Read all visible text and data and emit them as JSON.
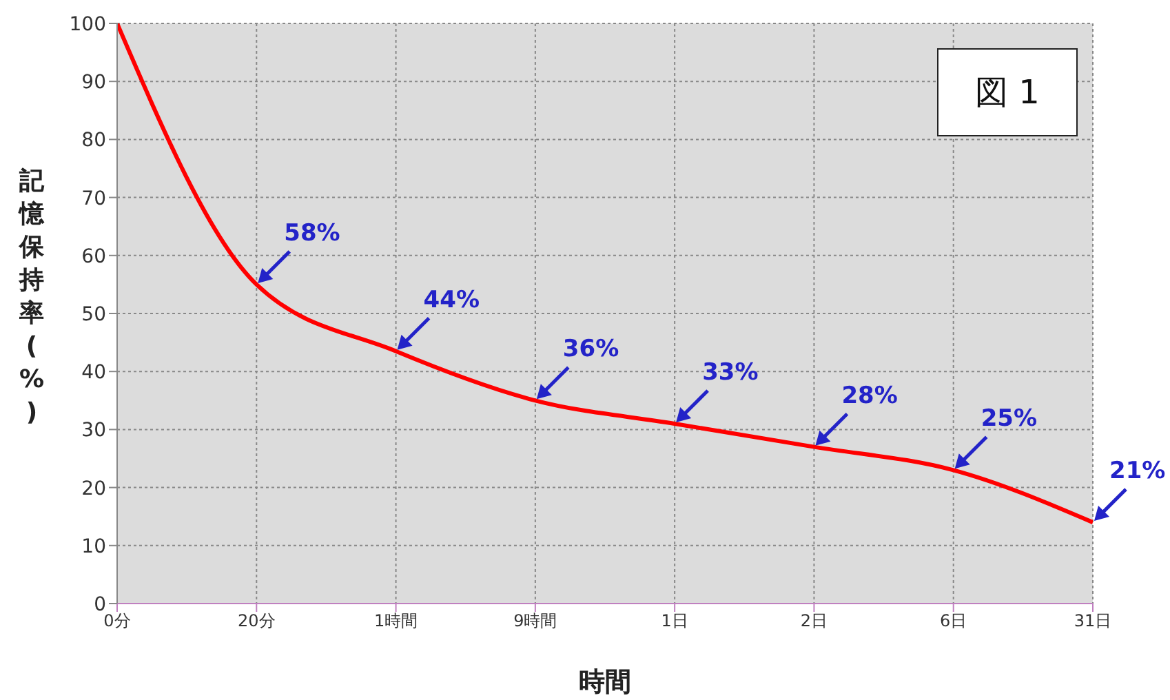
{
  "chart_data": {
    "type": "line",
    "xlabel": "時間",
    "ylabel": "記憶保持率(%)",
    "categories": [
      "0分",
      "20分",
      "1時間",
      "9時間",
      "1日",
      "2日",
      "6日",
      "31日"
    ],
    "series": [
      {
        "color": "#ff0000",
        "values": [
          100,
          55,
          43.5,
          35,
          31,
          27,
          23,
          14
        ]
      }
    ],
    "ylim": [
      0,
      100
    ],
    "yticks": [
      0,
      10,
      20,
      30,
      40,
      50,
      60,
      70,
      80,
      90,
      100
    ],
    "grid": true,
    "marker": "none",
    "line_style": "solid",
    "annotations": [
      "図 1",
      {
        "text": "58%",
        "x": "20分",
        "y": 55
      },
      {
        "text": "44%",
        "x": "1時間",
        "y": 43.5
      },
      {
        "text": "36%",
        "x": "9時間",
        "y": 35
      },
      {
        "text": "33%",
        "x": "1日",
        "y": 31
      },
      {
        "text": "28%",
        "x": "2日",
        "y": 27
      },
      {
        "text": "25%",
        "x": "6日",
        "y": 23
      },
      {
        "text": "21%",
        "x": "31日",
        "y": 14
      }
    ]
  }
}
